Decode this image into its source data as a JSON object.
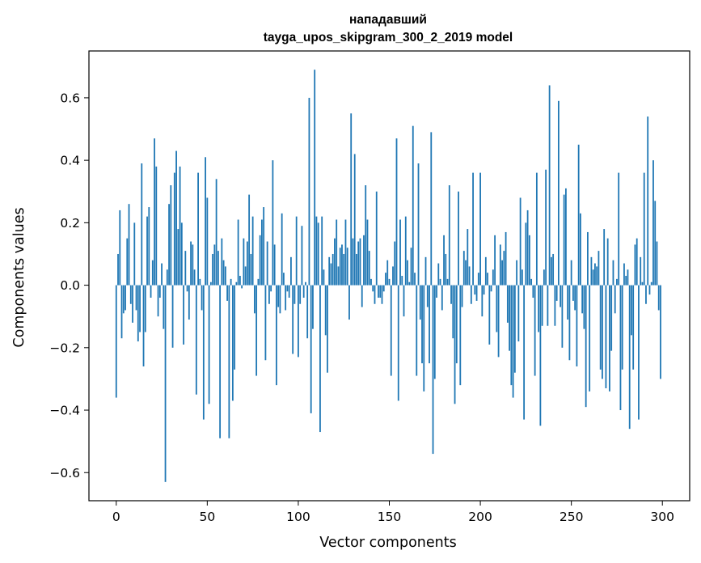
{
  "chart_data": {
    "type": "bar",
    "title": "нападавший",
    "subtitle": "tayga_upos_skipgram_300_2_2019 model",
    "xlabel": "Vector components",
    "ylabel": "Components values",
    "xlim": [
      -15,
      315
    ],
    "ylim": [
      -0.69,
      0.75
    ],
    "xticks": [
      0,
      50,
      100,
      150,
      200,
      250,
      300
    ],
    "yticks": [
      -0.6,
      -0.4,
      -0.2,
      0.0,
      0.2,
      0.4,
      0.6
    ],
    "ytick_labels": [
      "−0.6",
      "−0.4",
      "−0.2",
      "0.0",
      "0.2",
      "0.4",
      "0.6"
    ],
    "bar_color": "#1f77b4",
    "grid": false,
    "legend": "none",
    "values": [
      -0.36,
      0.1,
      0.24,
      -0.17,
      -0.09,
      -0.08,
      0.15,
      0.26,
      -0.06,
      -0.12,
      0.2,
      -0.08,
      -0.18,
      -0.15,
      0.39,
      -0.26,
      -0.15,
      0.22,
      0.25,
      -0.04,
      0.08,
      0.47,
      0.38,
      -0.1,
      -0.04,
      0.07,
      -0.14,
      -0.63,
      0.05,
      0.26,
      0.32,
      -0.2,
      0.36,
      0.43,
      0.18,
      0.38,
      0.2,
      -0.19,
      0.11,
      -0.02,
      -0.11,
      0.14,
      0.13,
      0.05,
      -0.35,
      0.36,
      0.02,
      -0.08,
      -0.43,
      0.41,
      0.28,
      -0.38,
      0.01,
      0.1,
      0.13,
      0.34,
      0.11,
      -0.49,
      0.15,
      0.08,
      0.06,
      -0.05,
      -0.49,
      0.02,
      -0.37,
      -0.27,
      0.01,
      0.21,
      0.03,
      -0.01,
      0.15,
      0.06,
      0.14,
      0.29,
      0.1,
      0.22,
      -0.09,
      -0.29,
      0.02,
      0.16,
      0.21,
      0.25,
      -0.24,
      0.14,
      -0.06,
      -0.02,
      0.4,
      0.13,
      -0.32,
      -0.07,
      -0.09,
      0.23,
      0.04,
      -0.08,
      -0.02,
      -0.04,
      0.09,
      -0.22,
      -0.06,
      0.22,
      -0.23,
      -0.06,
      0.19,
      -0.04,
      0.01,
      -0.17,
      0.6,
      -0.41,
      -0.14,
      0.69,
      0.22,
      0.2,
      -0.47,
      0.22,
      0.05,
      -0.16,
      -0.28,
      0.09,
      0.07,
      0.1,
      0.15,
      0.21,
      0.06,
      0.12,
      0.13,
      0.1,
      0.21,
      0.12,
      -0.11,
      0.55,
      0.15,
      0.42,
      0.1,
      0.14,
      0.15,
      -0.07,
      0.16,
      0.32,
      0.21,
      0.11,
      0.02,
      -0.02,
      -0.06,
      0.3,
      -0.04,
      -0.04,
      -0.06,
      -0.02,
      0.04,
      0.08,
      0.02,
      -0.29,
      0.06,
      0.14,
      0.47,
      -0.37,
      0.21,
      0.03,
      -0.1,
      0.22,
      0.08,
      0.01,
      0.12,
      0.51,
      0.04,
      -0.29,
      0.39,
      -0.11,
      -0.25,
      -0.34,
      0.09,
      -0.07,
      -0.25,
      0.49,
      -0.54,
      -0.3,
      -0.04,
      0.07,
      0.02,
      -0.08,
      0.16,
      0.1,
      0.02,
      0.32,
      -0.06,
      -0.17,
      -0.38,
      -0.25,
      0.3,
      -0.32,
      -0.07,
      0.11,
      0.08,
      0.18,
      0.06,
      -0.06,
      0.36,
      -0.03,
      -0.05,
      0.04,
      0.36,
      -0.1,
      -0.03,
      0.09,
      0.04,
      -0.19,
      -0.02,
      0.05,
      0.16,
      -0.15,
      -0.23,
      0.13,
      0.08,
      0.11,
      0.17,
      -0.12,
      -0.21,
      -0.32,
      -0.36,
      -0.28,
      0.08,
      -0.18,
      0.28,
      0.05,
      -0.43,
      0.2,
      0.24,
      0.16,
      0.02,
      -0.04,
      -0.29,
      0.36,
      -0.15,
      -0.45,
      -0.13,
      0.05,
      0.37,
      -0.13,
      0.64,
      0.09,
      0.1,
      -0.13,
      -0.05,
      0.59,
      -0.07,
      -0.2,
      0.29,
      0.31,
      -0.11,
      -0.24,
      0.08,
      -0.05,
      -0.08,
      -0.26,
      0.45,
      0.23,
      -0.09,
      -0.14,
      -0.39,
      0.17,
      -0.34,
      0.09,
      0.05,
      0.07,
      0.06,
      0.11,
      -0.27,
      -0.3,
      0.18,
      -0.33,
      0.15,
      -0.34,
      -0.21,
      0.08,
      -0.09,
      0.02,
      0.36,
      -0.4,
      -0.27,
      0.07,
      0.03,
      0.05,
      -0.46,
      -0.16,
      -0.27,
      0.13,
      0.15,
      -0.43,
      0.09,
      0.01,
      0.36,
      -0.06,
      0.54,
      -0.03,
      0.01,
      0.4,
      0.27,
      0.14,
      -0.08,
      -0.3
    ]
  }
}
